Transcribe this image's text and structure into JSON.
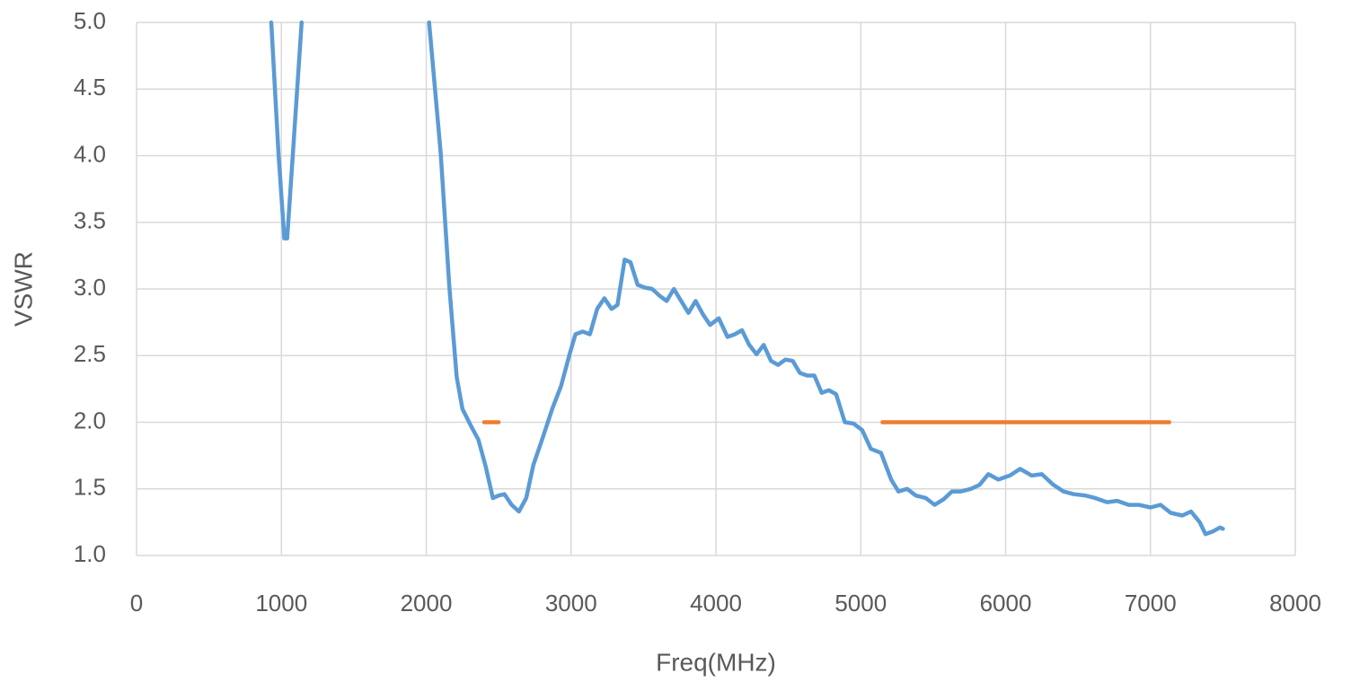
{
  "chart_data": {
    "type": "line",
    "x_label": "Freq(MHz)",
    "y_label": "VSWR",
    "xlim": [
      0,
      8000
    ],
    "xticks": [
      0,
      1000,
      2000,
      3000,
      4000,
      5000,
      6000,
      7000,
      8000
    ],
    "ylim": [
      1,
      5
    ],
    "yticks": [
      {
        "value": 1,
        "label": "1.0"
      },
      1.5,
      {
        "value": 2,
        "label": "2.0"
      },
      2.5,
      {
        "value": 3,
        "label": "3.0"
      },
      3.5,
      {
        "value": 4,
        "label": "4.0"
      },
      4.5,
      {
        "value": 5,
        "label": "5.0"
      }
    ],
    "grid": true,
    "series": [
      {
        "color": "#5b9bd5",
        "x": [
          930,
          980,
          1020,
          1040,
          1080,
          1140,
          1600,
          2020,
          2100,
          2160,
          2210,
          2250,
          2310,
          2360,
          2410,
          2460,
          2500,
          2540,
          2590,
          2640,
          2690,
          2740,
          2800,
          2870,
          2930,
          2990,
          3030,
          3080,
          3130,
          3180,
          3230,
          3280,
          3320,
          3370,
          3410,
          3460,
          3510,
          3560,
          3610,
          3660,
          3710,
          3760,
          3810,
          3860,
          3910,
          3960,
          4020,
          4080,
          4130,
          4180,
          4230,
          4280,
          4330,
          4380,
          4430,
          4480,
          4530,
          4580,
          4630,
          4680,
          4730,
          4780,
          4830,
          4890,
          4950,
          5010,
          5070,
          5140,
          5210,
          5260,
          5320,
          5380,
          5450,
          5510,
          5570,
          5630,
          5690,
          5760,
          5820,
          5880,
          5950,
          6030,
          6100,
          6180,
          6250,
          6330,
          6400,
          6470,
          6550,
          6620,
          6700,
          6770,
          6850,
          6920,
          7000,
          7070,
          7140,
          7220,
          7280,
          7340,
          7380,
          7430,
          7480,
          7500
        ],
        "values": [
          5.0,
          4.02,
          3.38,
          3.38,
          4.02,
          5.0,
          null,
          5.0,
          4.02,
          3.01,
          2.34,
          2.1,
          1.97,
          1.87,
          1.67,
          1.43,
          1.45,
          1.46,
          1.38,
          1.33,
          1.43,
          1.68,
          1.87,
          2.1,
          2.27,
          2.51,
          2.66,
          2.68,
          2.66,
          2.85,
          2.93,
          2.85,
          2.88,
          3.22,
          3.2,
          3.03,
          3.01,
          3.0,
          2.95,
          2.91,
          3.0,
          2.91,
          2.82,
          2.91,
          2.81,
          2.73,
          2.78,
          2.64,
          2.66,
          2.69,
          2.58,
          2.51,
          2.58,
          2.46,
          2.43,
          2.47,
          2.46,
          2.37,
          2.35,
          2.35,
          2.22,
          2.24,
          2.21,
          2.0,
          1.99,
          1.94,
          1.8,
          1.77,
          1.57,
          1.48,
          1.5,
          1.45,
          1.43,
          1.38,
          1.42,
          1.48,
          1.48,
          1.5,
          1.53,
          1.61,
          1.57,
          1.6,
          1.65,
          1.6,
          1.61,
          1.53,
          1.48,
          1.46,
          1.45,
          1.43,
          1.4,
          1.41,
          1.38,
          1.38,
          1.36,
          1.38,
          1.32,
          1.3,
          1.33,
          1.25,
          1.16,
          1.18,
          1.21,
          1.2
        ]
      },
      {
        "color": "#ed7d31",
        "x": [
          2400,
          2500
        ],
        "values": [
          2,
          2
        ]
      },
      {
        "color": "#ed7d31",
        "x": [
          5150,
          7130
        ],
        "values": [
          2,
          2
        ]
      }
    ]
  }
}
